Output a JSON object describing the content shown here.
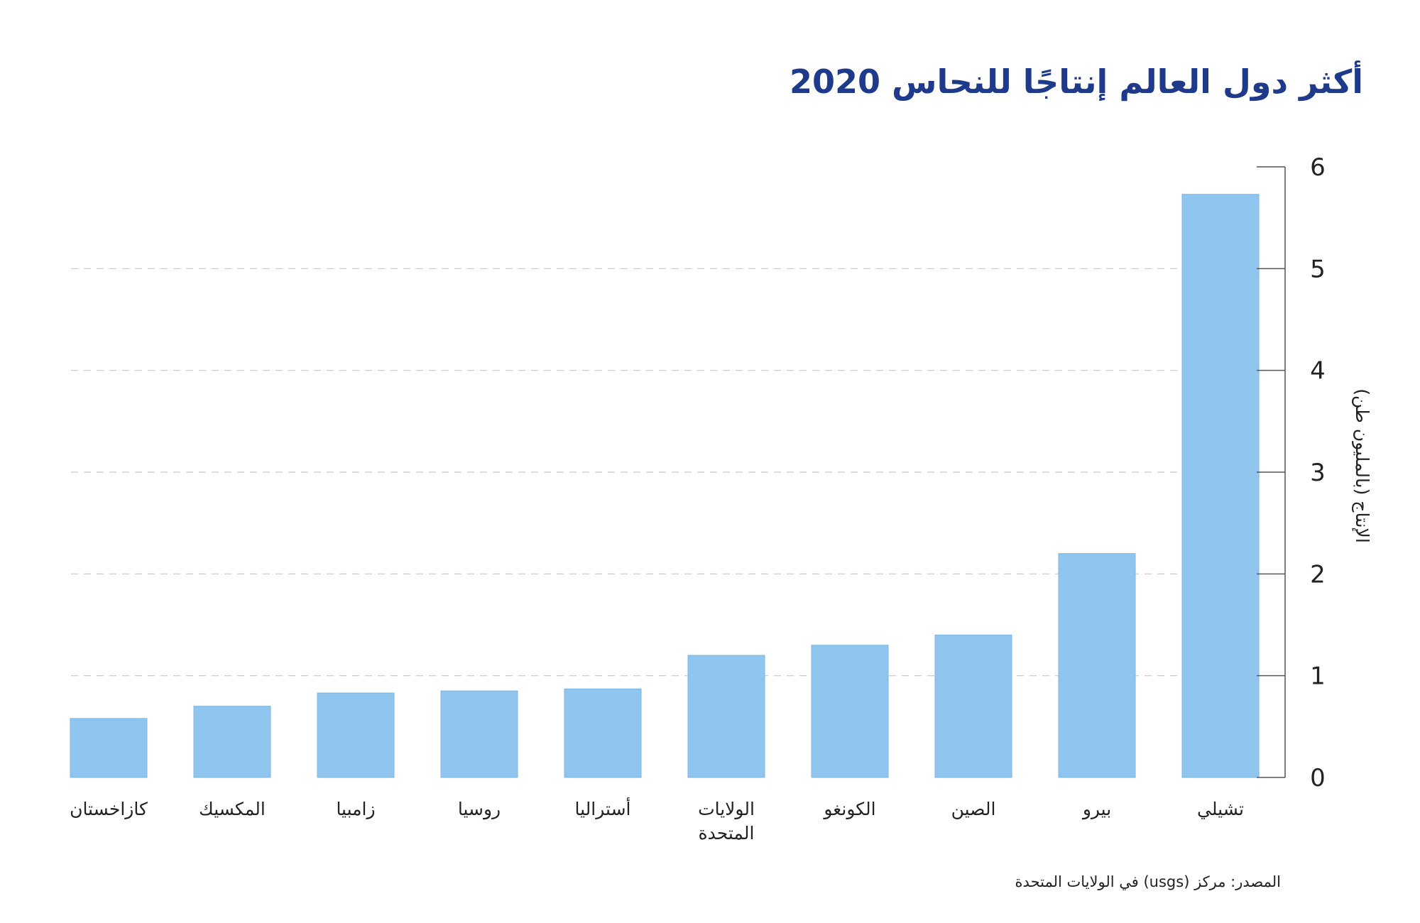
{
  "chart_data": {
    "type": "bar",
    "title": "أكثر دول العالم إنتاجًا للنحاس 2020",
    "ylabel": "الإنتاج (بالمليون طن)",
    "xlabel": "",
    "ylim": [
      0,
      6
    ],
    "yticks": [
      0,
      1,
      2,
      3,
      4,
      5,
      6
    ],
    "grid": true,
    "y_axis_side": "right",
    "bar_color": "#8fc5ee",
    "categories": [
      {
        "label": [
          "كازاخستان"
        ],
        "value": 0.58
      },
      {
        "label": [
          "المكسيك"
        ],
        "value": 0.7
      },
      {
        "label": [
          "زامبيا"
        ],
        "value": 0.83
      },
      {
        "label": [
          "روسيا"
        ],
        "value": 0.85
      },
      {
        "label": [
          "أستراليا"
        ],
        "value": 0.87
      },
      {
        "label": [
          "الولايات",
          "المتحدة"
        ],
        "value": 1.2
      },
      {
        "label": [
          "الكونغو"
        ],
        "value": 1.3
      },
      {
        "label": [
          "الصين"
        ],
        "value": 1.4
      },
      {
        "label": [
          "بيرو"
        ],
        "value": 2.2
      },
      {
        "label": [
          "تشيلي"
        ],
        "value": 5.73
      }
    ]
  },
  "source": "المصدر: مركز (usgs) في الولايات المتحدة"
}
